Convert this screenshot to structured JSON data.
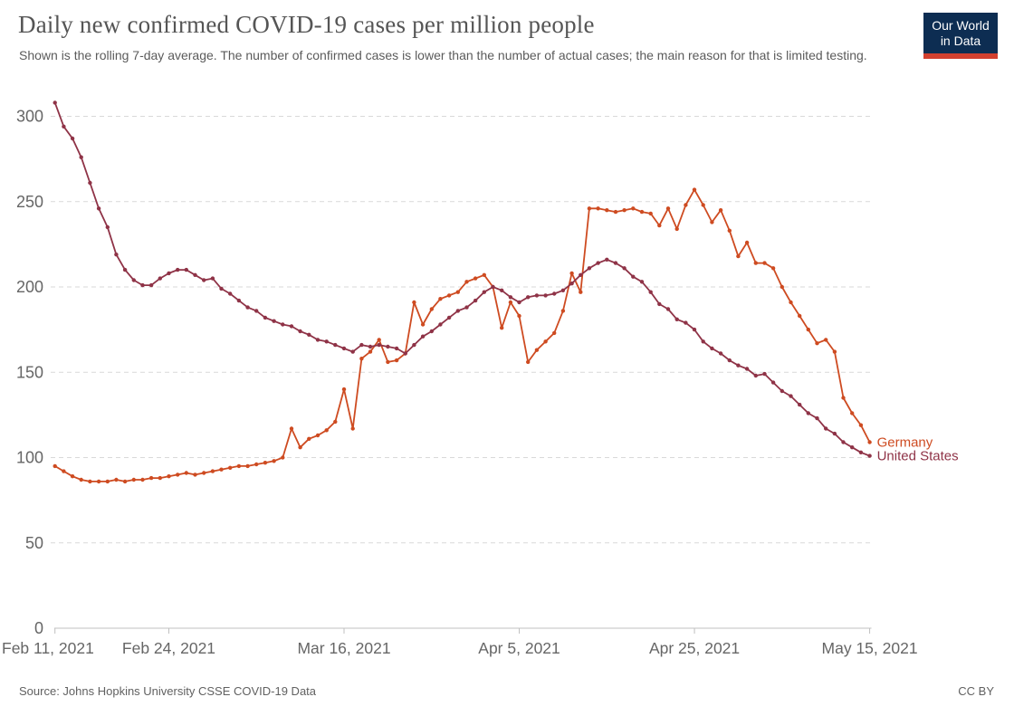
{
  "header": {
    "title": "Daily new confirmed COVID-19 cases per million people",
    "subtitle": "Shown is the rolling 7-day average. The number of confirmed cases is lower than the number of actual cases; the main reason for that is limited testing.",
    "logo": {
      "line1": "Our World",
      "line2": "in Data",
      "bg_color": "#0d2d52",
      "accent_color": "#d2402f",
      "text_color": "#ffffff"
    }
  },
  "chart_data": {
    "type": "line",
    "title": "Daily new confirmed COVID-19 cases per million people",
    "xlabel": "",
    "ylabel": "",
    "grid": "horizontal dashed gridlines",
    "legend_position": "labels at right end of each line",
    "y_ticks": [
      0,
      50,
      100,
      150,
      200,
      250,
      300
    ],
    "ylim": [
      0,
      310
    ],
    "x_unit": "daily data points from Feb 11, 2021 to May 15, 2021 (day index 0-93)",
    "x_tick_labels": [
      {
        "day": 0,
        "label": "Feb 11, 2021"
      },
      {
        "day": 13,
        "label": "Feb 24, 2021"
      },
      {
        "day": 33,
        "label": "Mar 16, 2021"
      },
      {
        "day": 53,
        "label": "Apr 5, 2021"
      },
      {
        "day": 73,
        "label": "Apr 25, 2021"
      },
      {
        "day": 93,
        "label": "May 15, 2021"
      }
    ],
    "series": [
      {
        "name": "Germany",
        "color": "#ce4b21",
        "values": [
          95,
          92,
          89,
          87,
          86,
          86,
          86,
          87,
          86,
          87,
          87,
          88,
          88,
          89,
          90,
          91,
          90,
          91,
          92,
          93,
          94,
          95,
          95,
          96,
          97,
          98,
          100,
          117,
          106,
          111,
          113,
          116,
          121,
          140,
          117,
          158,
          162,
          169,
          156,
          157,
          161,
          191,
          178,
          187,
          193,
          195,
          197,
          203,
          205,
          207,
          200,
          176,
          191,
          183,
          156,
          163,
          168,
          173,
          186,
          208,
          197,
          246,
          246,
          245,
          244,
          245,
          246,
          244,
          243,
          236,
          246,
          234,
          248,
          257,
          248,
          238,
          245,
          233,
          218,
          226,
          214,
          214,
          211,
          200,
          191,
          183,
          175,
          167,
          169,
          162,
          135,
          126,
          119,
          109
        ]
      },
      {
        "name": "United States",
        "color": "#8f3347",
        "values": [
          308,
          294,
          287,
          276,
          261,
          246,
          235,
          219,
          210,
          204,
          201,
          201,
          205,
          208,
          210,
          210,
          207,
          204,
          205,
          199,
          196,
          192,
          188,
          186,
          182,
          180,
          178,
          177,
          174,
          172,
          169,
          168,
          166,
          164,
          162,
          166,
          165,
          166,
          165,
          164,
          161,
          166,
          171,
          174,
          178,
          182,
          186,
          188,
          192,
          197,
          200,
          198,
          194,
          191,
          194,
          195,
          195,
          196,
          198,
          202,
          207,
          211,
          214,
          216,
          214,
          211,
          206,
          203,
          197,
          190,
          187,
          181,
          179,
          175,
          168,
          164,
          161,
          157,
          154,
          152,
          148,
          149,
          144,
          139,
          136,
          131,
          126,
          123,
          117,
          114,
          109,
          106,
          103,
          101
        ]
      }
    ]
  },
  "footer": {
    "source": "Source: Johns Hopkins University CSSE COVID-19 Data",
    "license": "CC BY"
  }
}
